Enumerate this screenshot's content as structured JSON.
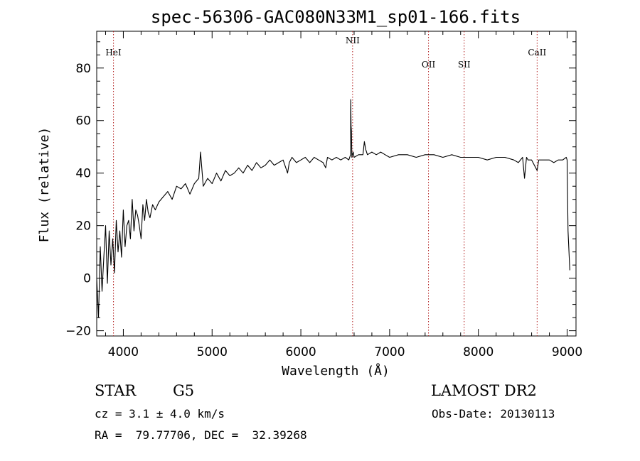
{
  "chart_data": {
    "type": "line",
    "title": "spec-56306-GAC080N33M1_sp01-166.fits",
    "xlabel": "Wavelength (Å)",
    "ylabel": "Flux (relative)",
    "xlim": [
      3700,
      9100
    ],
    "ylim": [
      -22,
      94
    ],
    "x_ticks": [
      4000,
      5000,
      6000,
      7000,
      8000,
      9000
    ],
    "y_ticks": [
      -20,
      0,
      20,
      40,
      60,
      80
    ],
    "x_tick_labels": [
      "4000",
      "5000",
      "6000",
      "7000",
      "8000",
      "9000"
    ],
    "y_tick_labels": [
      "−20",
      "0",
      "20",
      "40",
      "60",
      "80"
    ],
    "grid": false,
    "series": [
      {
        "color": "#000000",
        "x": [
          3700,
          3720,
          3740,
          3760,
          3780,
          3800,
          3820,
          3840,
          3860,
          3880,
          3900,
          3920,
          3940,
          3960,
          3980,
          4000,
          4020,
          4040,
          4060,
          4080,
          4100,
          4120,
          4140,
          4160,
          4180,
          4200,
          4220,
          4240,
          4260,
          4280,
          4300,
          4330,
          4360,
          4400,
          4450,
          4500,
          4550,
          4600,
          4650,
          4700,
          4750,
          4800,
          4850,
          4870,
          4900,
          4950,
          5000,
          5050,
          5100,
          5150,
          5200,
          5250,
          5300,
          5350,
          5400,
          5450,
          5500,
          5550,
          5600,
          5650,
          5700,
          5750,
          5800,
          5850,
          5870,
          5900,
          5950,
          6000,
          6050,
          6100,
          6150,
          6200,
          6250,
          6280,
          6300,
          6350,
          6400,
          6450,
          6500,
          6540,
          6560,
          6562,
          6566,
          6570,
          6575,
          6580,
          6590,
          6600,
          6650,
          6700,
          6716,
          6731,
          6750,
          6800,
          6850,
          6900,
          6950,
          7000,
          7100,
          7200,
          7300,
          7400,
          7500,
          7600,
          7700,
          7800,
          7900,
          8000,
          8100,
          8200,
          8300,
          8400,
          8450,
          8498,
          8520,
          8542,
          8560,
          8600,
          8662,
          8680,
          8700,
          8750,
          8800,
          8850,
          8900,
          8950,
          8990,
          9000,
          9010,
          9030
        ],
        "y": [
          0,
          -15,
          12,
          -5,
          8,
          20,
          -2,
          18,
          5,
          15,
          2,
          22,
          10,
          18,
          8,
          26,
          12,
          20,
          22,
          15,
          30,
          18,
          26,
          24,
          20,
          15,
          28,
          22,
          30,
          25,
          23,
          28,
          26,
          29,
          31,
          33,
          30,
          35,
          34,
          36,
          32,
          36,
          38,
          48,
          35,
          38,
          36,
          40,
          37,
          41,
          39,
          40,
          42,
          40,
          43,
          41,
          44,
          42,
          43,
          45,
          43,
          44,
          45,
          40,
          44,
          46,
          44,
          45,
          46,
          44,
          46,
          45,
          44,
          42,
          46,
          45,
          46,
          45,
          46,
          45,
          47,
          68,
          58,
          56,
          46,
          47,
          48,
          46,
          47,
          47,
          52,
          49,
          47,
          48,
          47,
          48,
          47,
          46,
          47,
          47,
          46,
          47,
          47,
          46,
          47,
          46,
          46,
          46,
          45,
          46,
          46,
          45,
          44,
          46,
          38,
          46,
          45,
          45,
          41,
          45,
          45,
          45,
          45,
          44,
          45,
          45,
          46,
          45,
          18,
          3
        ]
      }
    ],
    "emission_lines": [
      {
        "label": "HeI",
        "x": 3889
      },
      {
        "label": "NII",
        "x": 6583
      },
      {
        "label": "OII",
        "x": 7438
      },
      {
        "label": "SII",
        "x": 7840
      },
      {
        "label": "CaII",
        "x": 8662
      }
    ]
  },
  "info": {
    "object_class": "STAR",
    "subclass": "G5",
    "survey": "LAMOST DR2",
    "cz": "cz = 3.1 ± 4.0 km/s",
    "obs_date": "Obs-Date: 20130113",
    "coords": "RA =  79.77706, DEC =  32.39268"
  }
}
